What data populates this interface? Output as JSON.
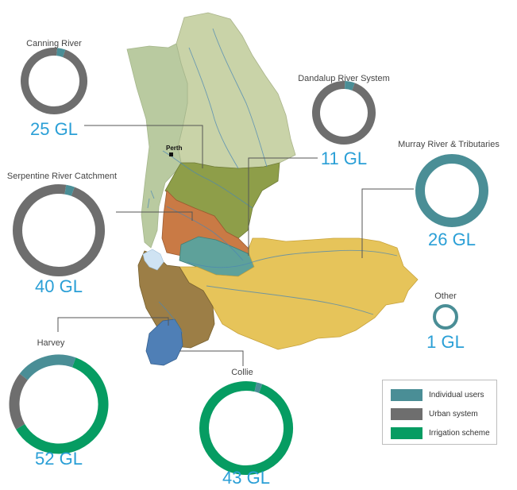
{
  "colors": {
    "individual": "#4a8e96",
    "urban": "#6e6e6e",
    "irrigation": "#069c62",
    "value_text": "#2a9fd6",
    "label_text": "#444444",
    "leader": "#555555"
  },
  "map": {
    "city_label": "Perth"
  },
  "legend": {
    "items": [
      {
        "label": "Individual users",
        "color": "#4a8e96"
      },
      {
        "label": "Urban system",
        "color": "#6e6e6e"
      },
      {
        "label": "Irrigation scheme",
        "color": "#069c62"
      }
    ]
  },
  "chart_data": {
    "type": "donut",
    "unit": "GL",
    "series_order": [
      "Individual users",
      "Urban system",
      "Irrigation scheme"
    ],
    "catchments": [
      {
        "name": "Canning River",
        "total": 25,
        "value_label": "25 GL",
        "shares": {
          "Individual users": 0.04,
          "Urban system": 0.96,
          "Irrigation scheme": 0
        }
      },
      {
        "name": "Dandalup River System",
        "total": 11,
        "value_label": "11 GL",
        "shares": {
          "Individual users": 0.05,
          "Urban system": 0.95,
          "Irrigation scheme": 0
        }
      },
      {
        "name": "Murray River & Tributaries",
        "total": 26,
        "value_label": "26 GL",
        "shares": {
          "Individual users": 1.0,
          "Urban system": 0,
          "Irrigation scheme": 0
        }
      },
      {
        "name": "Serpentine River Catchment",
        "total": 40,
        "value_label": "40 GL",
        "shares": {
          "Individual users": 0.03,
          "Urban system": 0.97,
          "Irrigation scheme": 0
        }
      },
      {
        "name": "Other",
        "total": 1,
        "value_label": "1 GL",
        "shares": {
          "Individual users": 1.0,
          "Urban system": 0,
          "Irrigation scheme": 0
        }
      },
      {
        "name": "Harvey",
        "total": 52,
        "value_label": "52 GL",
        "shares": {
          "Individual users": 0.2,
          "Urban system": 0.19,
          "Irrigation scheme": 0.61
        }
      },
      {
        "name": "Collie",
        "total": 43,
        "value_label": "43 GL",
        "shares": {
          "Individual users": 0.02,
          "Urban system": 0,
          "Irrigation scheme": 0.98
        }
      }
    ]
  }
}
